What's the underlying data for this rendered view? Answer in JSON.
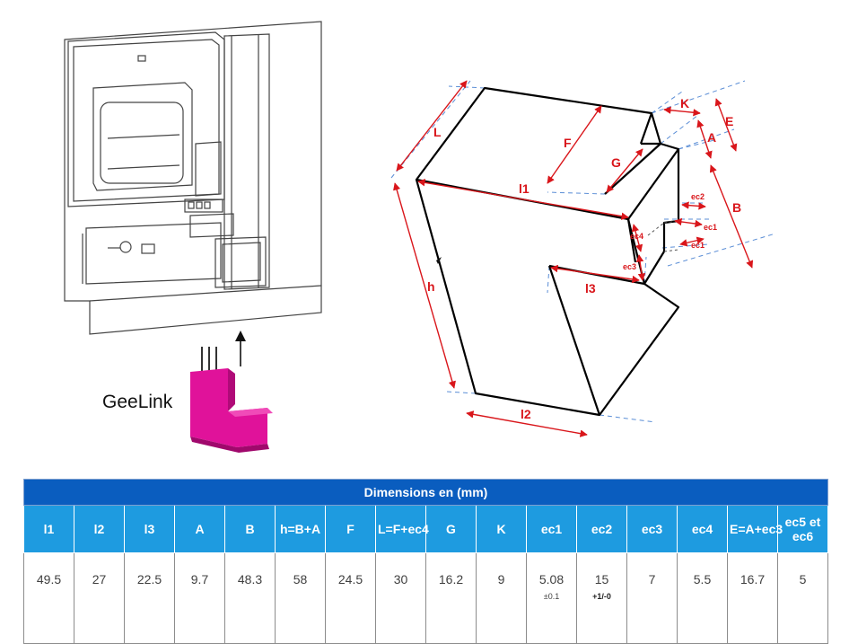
{
  "device": {
    "brand_label": "GeeLink"
  },
  "diagram": {
    "labels": {
      "L": "L",
      "F": "F",
      "G": "G",
      "K": "K",
      "E": "E",
      "A": "A",
      "B": "B",
      "l1": "l1",
      "h": "h",
      "l3": "l3",
      "l2": "l2",
      "ec1_top": "ec1",
      "ec1_bottom": "ec1",
      "ec2": "ec2",
      "ec3": "ec3",
      "ec4": "ec4"
    },
    "accent_color": "#d9161b",
    "guide_color": "#5b8ed6"
  },
  "table": {
    "title": "Dimensions en (mm)",
    "headers": [
      "l1",
      "l2",
      "l3",
      "A",
      "B",
      "h=B+A",
      "F",
      "L=F+ec4",
      "G",
      "K",
      "ec1",
      "ec2",
      "ec3",
      "ec4",
      "E=A+ec3",
      "ec5 et ec6"
    ],
    "values": [
      "49.5",
      "27",
      "22.5",
      "9.7",
      "48.3",
      "58",
      "24.5",
      "30",
      "16.2",
      "9",
      "5.08",
      "15",
      "7",
      "5.5",
      "16.7",
      "5"
    ],
    "tolerances": {
      "10": "±0.1",
      "11": "+1/-0"
    },
    "colors": {
      "title_bg": "#0a5dbf",
      "header_bg": "#1e9be0"
    }
  }
}
